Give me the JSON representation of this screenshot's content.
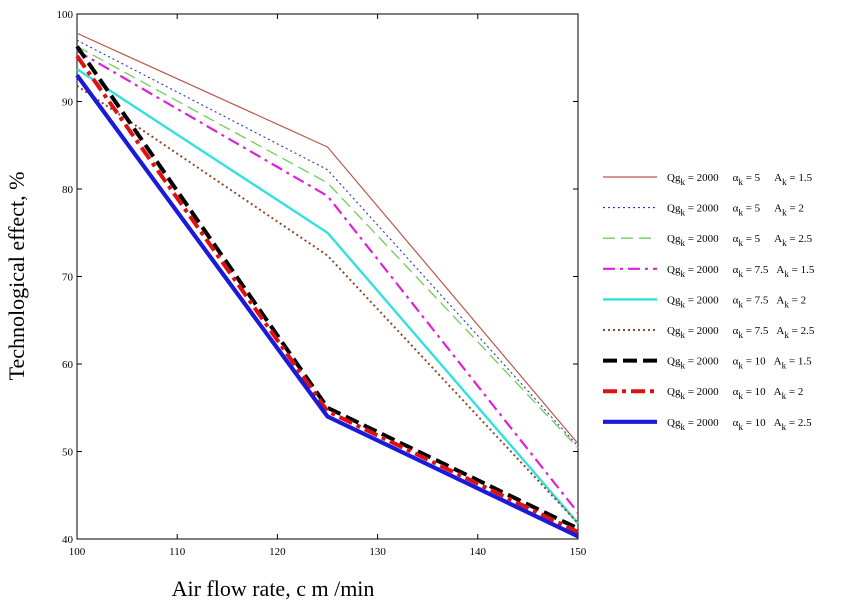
{
  "chart_data": {
    "type": "line",
    "xlabel": "Air flow rate, c m /min",
    "ylabel": "Technological effect, %",
    "xlim": [
      100,
      150
    ],
    "ylim": [
      40,
      100
    ],
    "x_ticks": [
      "100",
      "110",
      "120",
      "130",
      "140",
      "150"
    ],
    "y_ticks": [
      "40",
      "50",
      "60",
      "70",
      "80",
      "90",
      "100"
    ],
    "grid": false,
    "legend_position": "right",
    "x": [
      100,
      125,
      150
    ],
    "series": [
      {
        "name": "Qg_k = 2000  α_k = 5  A_k = 1.5",
        "parts": {
          "q": "2000",
          "a": "5",
          "A": "1.5"
        },
        "values": [
          97.8,
          84.8,
          50.9
        ],
        "color": "#b85a4e",
        "dash": "solid",
        "width": 1.2
      },
      {
        "name": "Qg_k = 2000  α_k = 5  A_k = 2",
        "parts": {
          "q": "2000",
          "a": "5",
          "A": "2"
        },
        "values": [
          97.0,
          82.2,
          50.6
        ],
        "color": "#2233cc",
        "dash": "dotted",
        "width": 1.1
      },
      {
        "name": "Qg_k = 2000  α_k = 5  A_k = 2.5",
        "parts": {
          "q": "2000",
          "a": "5",
          "A": "2.5"
        },
        "values": [
          96.3,
          80.7,
          50.4
        ],
        "color": "#6fcf5a",
        "dash": "dashed",
        "width": 1.3
      },
      {
        "name": "Qg_k = 2000  α_k = 7.5  A_k = 1.5",
        "parts": {
          "q": "2000",
          "a": "7.5",
          "A": "1.5"
        },
        "values": [
          95.8,
          79.2,
          43.0
        ],
        "color": "#e020d8",
        "dash": "dashdot",
        "width": 2.2
      },
      {
        "name": "Qg_k = 2000  α_k = 7.5  A_k = 2",
        "parts": {
          "q": "2000",
          "a": "7.5",
          "A": "2"
        },
        "values": [
          93.7,
          75.0,
          41.8
        ],
        "color": "#33e0e0",
        "dash": "solid",
        "width": 2.4
      },
      {
        "name": "Qg_k = 2000  α_k = 7.5  A_k = 2.5",
        "parts": {
          "q": "2000",
          "a": "7.5",
          "A": "2.5"
        },
        "values": [
          91.8,
          72.4,
          41.8
        ],
        "color": "#8b4a2a",
        "dash": "finedot",
        "width": 2.0
      },
      {
        "name": "Qg_k = 2000  α_k = 10  A_k = 1.5",
        "parts": {
          "q": "2000",
          "a": "10",
          "A": "1.5"
        },
        "values": [
          96.3,
          55.0,
          41.2
        ],
        "color": "#000000",
        "dash": "bigdash",
        "width": 4.0
      },
      {
        "name": "Qg_k = 2000  α_k = 10  A_k = 2",
        "parts": {
          "q": "2000",
          "a": "10",
          "A": "2"
        },
        "values": [
          95.2,
          54.6,
          40.8
        ],
        "color": "#e01010",
        "dash": "bigdashdot",
        "width": 4.0
      },
      {
        "name": "Qg_k = 2000  α_k = 10  A_k = 2.5",
        "parts": {
          "q": "2000",
          "a": "10",
          "A": "2.5"
        },
        "values": [
          93.0,
          54.0,
          40.3
        ],
        "color": "#1a1ad8",
        "dash": "solid",
        "width": 4.2
      }
    ]
  }
}
